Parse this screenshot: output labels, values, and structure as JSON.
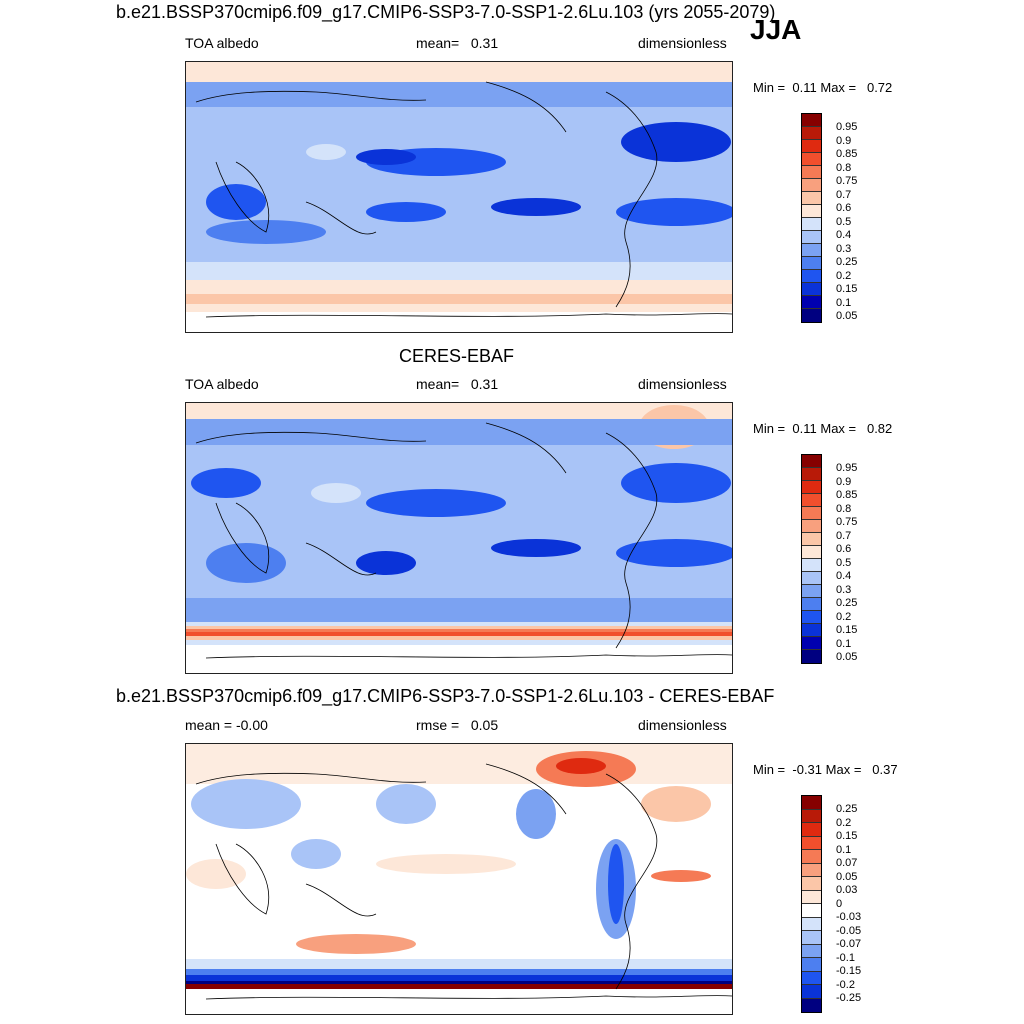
{
  "season": "JJA",
  "colors": {
    "abs": [
      "#000080",
      "#0000b0",
      "#0a33d8",
      "#1f55f0",
      "#4d7ff0",
      "#7ba2f2",
      "#a9c4f7",
      "#d4e3fa",
      "#fde7d8",
      "#fbc6a8",
      "#f8a07e",
      "#f57a55",
      "#f14f2d",
      "#df2a10",
      "#b81a08",
      "#860000"
    ],
    "diff": [
      "#000080",
      "#0000b0",
      "#0a33d8",
      "#1f55f0",
      "#4d7ff0",
      "#7ba2f2",
      "#a9c4f7",
      "#d4e3fa",
      "#ffffff",
      "#fde7d8",
      "#fbc6a8",
      "#f8a07e",
      "#f57a55",
      "#f14f2d",
      "#df2a10",
      "#b81a08",
      "#860000"
    ]
  },
  "panels": [
    {
      "title": "b.e21.BSSP370cmip6.f09_g17.CMIP6-SSP3-7.0-SSP1-2.6Lu.103 (yrs 2055-2079)",
      "left_label": "TOA albedo",
      "stat_label": "mean=",
      "stat_value": "0.31",
      "units": "dimensionless",
      "min_label": "Min =",
      "min_value": "0.11",
      "max_label": "Max =",
      "max_value": "0.72",
      "colorbar_labels": [
        "0.95",
        "0.9",
        "0.85",
        "0.8",
        "0.75",
        "0.7",
        "0.6",
        "0.5",
        "0.4",
        "0.3",
        "0.25",
        "0.2",
        "0.15",
        "0.1",
        "0.05"
      ]
    },
    {
      "title": "CERES-EBAF",
      "left_label": "TOA albedo",
      "stat_label": "mean=",
      "stat_value": "0.31",
      "units": "dimensionless",
      "min_label": "Min =",
      "min_value": "0.11",
      "max_label": "Max =",
      "max_value": "0.82",
      "colorbar_labels": [
        "0.95",
        "0.9",
        "0.85",
        "0.8",
        "0.75",
        "0.7",
        "0.6",
        "0.5",
        "0.4",
        "0.3",
        "0.25",
        "0.2",
        "0.15",
        "0.1",
        "0.05"
      ]
    },
    {
      "title": "b.e21.BSSP370cmip6.f09_g17.CMIP6-SSP3-7.0-SSP1-2.6Lu.103 - CERES-EBAF",
      "left_label": "mean =  -0.00",
      "stat_label": "rmse =",
      "stat_value": "0.05",
      "units": "dimensionless",
      "min_label": "Min =",
      "min_value": "-0.31",
      "max_label": "Max =",
      "max_value": "0.37",
      "colorbar_labels": [
        "0.25",
        "0.2",
        "0.15",
        "0.1",
        "0.07",
        "0.05",
        "0.03",
        "0",
        "-0.03",
        "-0.05",
        "-0.07",
        "-0.1",
        "-0.15",
        "-0.2",
        "-0.25"
      ]
    }
  ]
}
